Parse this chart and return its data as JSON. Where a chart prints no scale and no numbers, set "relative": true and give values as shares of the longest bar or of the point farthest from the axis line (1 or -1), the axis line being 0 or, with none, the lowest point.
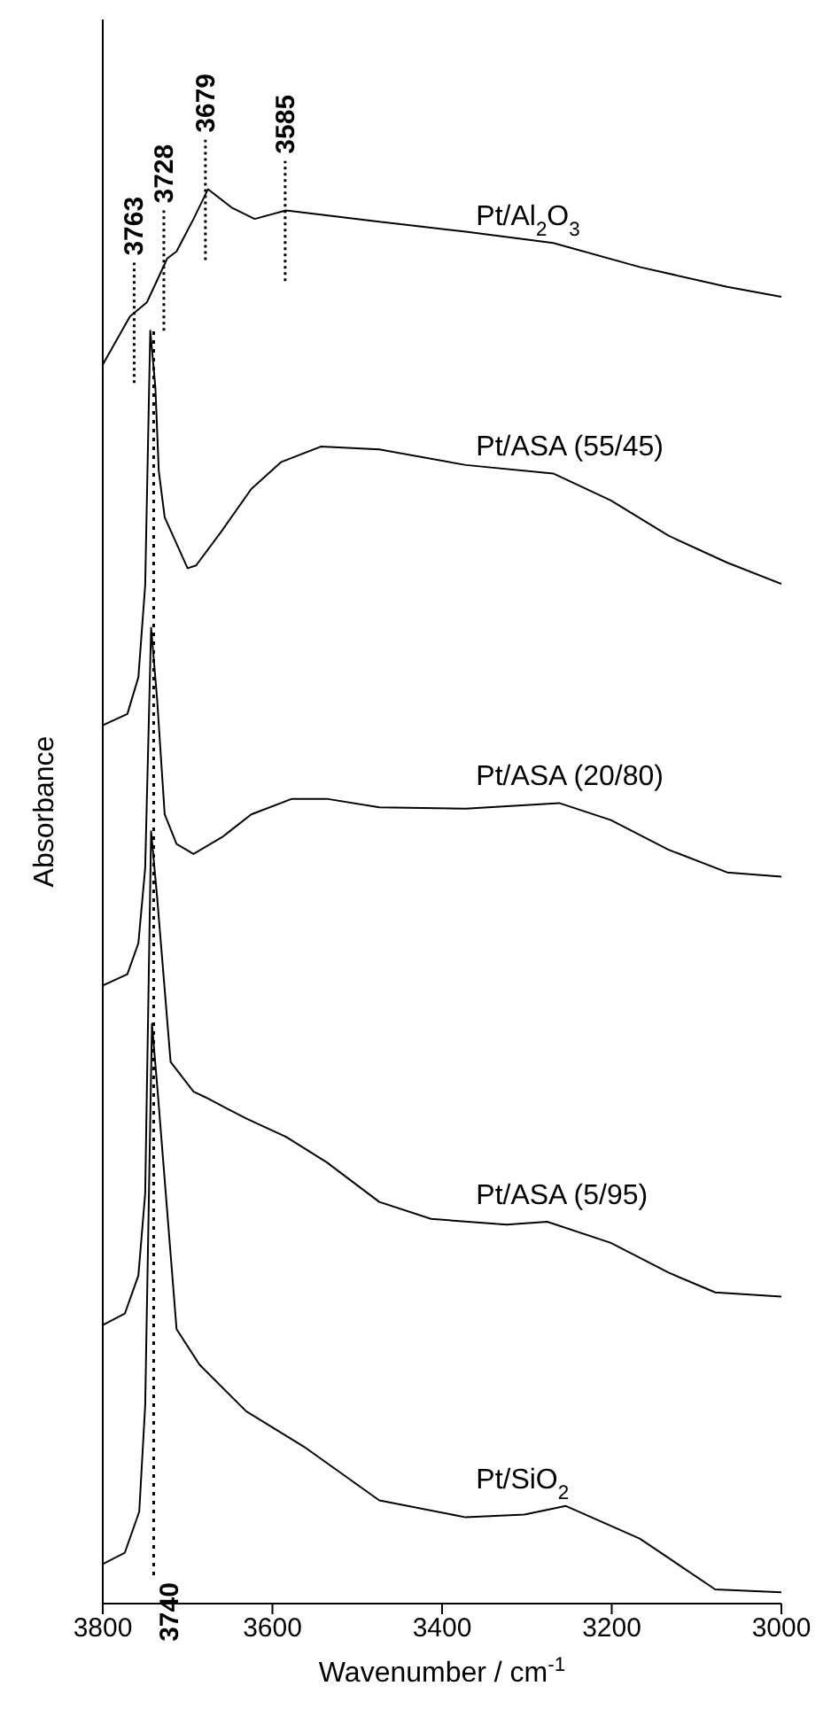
{
  "chart_data": {
    "type": "line",
    "relative": true,
    "xlabel": "Wavenumber / cm$^{-1}$",
    "ylabel": "Absorbance",
    "xlim": [
      3800,
      3000
    ],
    "xticks": [
      3800,
      3600,
      3400,
      3200,
      3000
    ],
    "marker": "none",
    "line_style": "solid",
    "series": [
      {
        "name": "Pt/Al$_{2}$O$_{3}$",
        "color": "#000000",
        "x": [
          3800,
          3768,
          3748,
          3724,
          3713,
          3693,
          3676,
          3648,
          3621,
          3584,
          3474,
          3372,
          3269,
          3167,
          3064,
          3000
        ],
        "values": [
          0.876,
          0.91,
          0.92,
          0.951,
          0.956,
          0.979,
          1.0,
          0.987,
          0.979,
          0.985,
          0.977,
          0.97,
          0.962,
          0.945,
          0.931,
          0.924
        ]
      },
      {
        "name": "Pt/ASA (55/45)",
        "color": "#000000",
        "x": [
          3800,
          3771,
          3758,
          3750,
          3744,
          3738,
          3734,
          3727,
          3700,
          3690,
          3659,
          3625,
          3590,
          3543,
          3474,
          3372,
          3269,
          3201,
          3133,
          3064,
          3000
        ],
        "values": [
          0.621,
          0.629,
          0.655,
          0.72,
          0.9,
          0.86,
          0.801,
          0.768,
          0.732,
          0.734,
          0.759,
          0.788,
          0.807,
          0.818,
          0.816,
          0.805,
          0.799,
          0.78,
          0.755,
          0.736,
          0.721
        ]
      },
      {
        "name": "Pt/ASA (20/80)",
        "color": "#000000",
        "x": [
          3800,
          3771,
          3758,
          3750,
          3743,
          3736,
          3727,
          3713,
          3693,
          3659,
          3625,
          3577,
          3536,
          3474,
          3372,
          3262,
          3201,
          3133,
          3064,
          3000
        ],
        "values": [
          0.437,
          0.445,
          0.467,
          0.52,
          0.69,
          0.64,
          0.558,
          0.537,
          0.53,
          0.542,
          0.558,
          0.569,
          0.569,
          0.563,
          0.562,
          0.566,
          0.554,
          0.533,
          0.517,
          0.514
        ]
      },
      {
        "name": "Pt/ASA (5/95)",
        "color": "#000000",
        "x": [
          3800,
          3774,
          3758,
          3750,
          3743,
          3736,
          3720,
          3693,
          3679,
          3631,
          3584,
          3536,
          3474,
          3413,
          3324,
          3276,
          3201,
          3133,
          3078,
          3000
        ],
        "values": [
          0.197,
          0.205,
          0.232,
          0.29,
          0.546,
          0.5,
          0.383,
          0.362,
          0.358,
          0.343,
          0.33,
          0.312,
          0.284,
          0.272,
          0.268,
          0.27,
          0.255,
          0.234,
          0.22,
          0.217
        ]
      },
      {
        "name": "Pt/SiO$_{2}$",
        "color": "#000000",
        "x": [
          3800,
          3774,
          3757,
          3750,
          3742,
          3735,
          3713,
          3686,
          3631,
          3563,
          3474,
          3372,
          3303,
          3254,
          3167,
          3078,
          3000
        ],
        "values": [
          0.028,
          0.036,
          0.065,
          0.14,
          0.41,
          0.36,
          0.194,
          0.169,
          0.136,
          0.111,
          0.073,
          0.061,
          0.063,
          0.069,
          0.046,
          0.01,
          0.008
        ]
      }
    ],
    "annotations": [
      {
        "text": "3763",
        "x": 3763,
        "y": 0.913
      },
      {
        "text": "3728",
        "x": 3728,
        "y": 0.95
      },
      {
        "text": "3679",
        "x": 3679,
        "y": 1.0
      },
      {
        "text": "3585",
        "x": 3585,
        "y": 0.985
      }
    ],
    "ref_lines": [
      {
        "axis": "x",
        "value": 3740,
        "label": "3740",
        "line_style": "dotted",
        "color": "#000000"
      }
    ]
  }
}
